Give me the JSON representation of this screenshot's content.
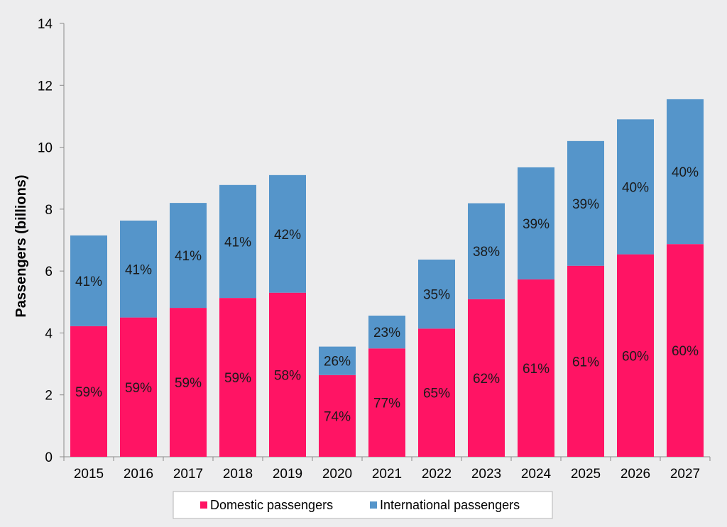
{
  "chart_data": {
    "type": "bar",
    "stacked": true,
    "categories": [
      "2015",
      "2016",
      "2017",
      "2018",
      "2019",
      "2020",
      "2021",
      "2022",
      "2023",
      "2024",
      "2025",
      "2026",
      "2027"
    ],
    "series": [
      {
        "name": "Domestic passengers",
        "color": "#ff1464",
        "values": [
          4.22,
          4.5,
          4.81,
          5.13,
          5.3,
          2.64,
          3.5,
          4.14,
          5.09,
          5.73,
          6.17,
          6.54,
          6.87
        ],
        "labels": [
          "59%",
          "59%",
          "59%",
          "59%",
          "58%",
          "74%",
          "77%",
          "65%",
          "62%",
          "61%",
          "61%",
          "60%",
          "60%"
        ]
      },
      {
        "name": "International passengers",
        "color": "#5595ca",
        "values": [
          2.93,
          3.13,
          3.39,
          3.65,
          3.8,
          0.92,
          1.06,
          2.23,
          3.1,
          3.62,
          4.03,
          4.36,
          4.68
        ],
        "labels": [
          "41%",
          "41%",
          "41%",
          "41%",
          "42%",
          "26%",
          "23%",
          "35%",
          "38%",
          "39%",
          "39%",
          "40%",
          "40%"
        ]
      }
    ],
    "ylabel": "Passengers (billions)",
    "xlabel": "",
    "ylim": [
      0,
      14
    ],
    "yticks": [
      "0",
      "2",
      "4",
      "6",
      "8",
      "10",
      "12",
      "14"
    ],
    "grid": false,
    "legend_position": "bottom"
  }
}
